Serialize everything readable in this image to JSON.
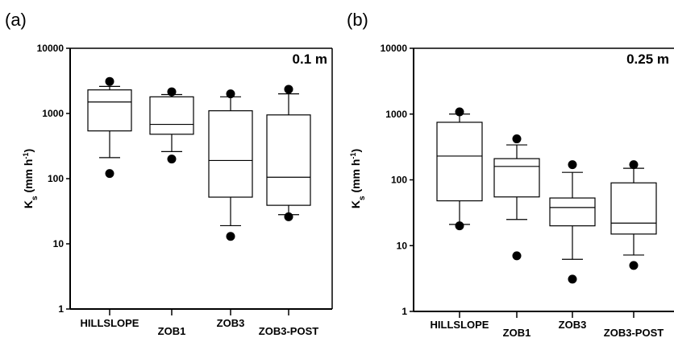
{
  "chart_data": [
    {
      "panel": "(a)",
      "type": "box",
      "annotation": "0.1 m",
      "ylabel": {
        "main": "K",
        "sub": "s",
        "unit_pre": " (mm h",
        "unit_sup": "-1",
        "unit_post": ")"
      },
      "yscale": "log",
      "ylim": [
        1,
        10000
      ],
      "yticks": [
        "1",
        "10",
        "100",
        "1000",
        "10000"
      ],
      "categories": [
        "HILLSLOPE",
        "ZOB1",
        "ZOB3",
        "ZOB3-POST"
      ],
      "boxes": [
        {
          "category": "HILLSLOPE",
          "whisker_low": 210,
          "q1": 540,
          "median": 1500,
          "q3": 2300,
          "whisker_high": 2600,
          "outliers": [
            3100,
            120
          ]
        },
        {
          "category": "ZOB1",
          "whisker_low": 260,
          "q1": 480,
          "median": 680,
          "q3": 1800,
          "whisker_high": 1950,
          "outliers": [
            2150,
            200
          ]
        },
        {
          "category": "ZOB3",
          "whisker_low": 19,
          "q1": 52,
          "median": 190,
          "q3": 1100,
          "whisker_high": 1800,
          "outliers": [
            2000,
            13
          ]
        },
        {
          "category": "ZOB3-POST",
          "whisker_low": 28,
          "q1": 39,
          "median": 105,
          "q3": 950,
          "whisker_high": 2000,
          "outliers": [
            2350,
            26
          ]
        }
      ]
    },
    {
      "panel": "(b)",
      "type": "box",
      "annotation": "0.25 m",
      "ylabel": {
        "main": "K",
        "sub": "s",
        "unit_pre": " (mm h",
        "unit_sup": "-1",
        "unit_post": ")"
      },
      "yscale": "log",
      "ylim": [
        1,
        10000
      ],
      "yticks": [
        "1",
        "10",
        "100",
        "1000",
        "10000"
      ],
      "categories": [
        "HILLSLOPE",
        "ZOB1",
        "ZOB3",
        "ZOB3-POST"
      ],
      "boxes": [
        {
          "category": "HILLSLOPE",
          "whisker_low": 21,
          "q1": 48,
          "median": 230,
          "q3": 750,
          "whisker_high": 1000,
          "outliers": [
            1080,
            20
          ]
        },
        {
          "category": "ZOB1",
          "whisker_low": 25,
          "q1": 55,
          "median": 160,
          "q3": 210,
          "whisker_high": 340,
          "outliers": [
            420,
            7
          ]
        },
        {
          "category": "ZOB3",
          "whisker_low": 6.2,
          "q1": 20,
          "median": 38,
          "q3": 53,
          "whisker_high": 130,
          "outliers": [
            170,
            3.1
          ]
        },
        {
          "category": "ZOB3-POST",
          "whisker_low": 7.2,
          "q1": 15,
          "median": 22,
          "q3": 90,
          "whisker_high": 150,
          "outliers": [
            170,
            5
          ]
        }
      ]
    }
  ]
}
